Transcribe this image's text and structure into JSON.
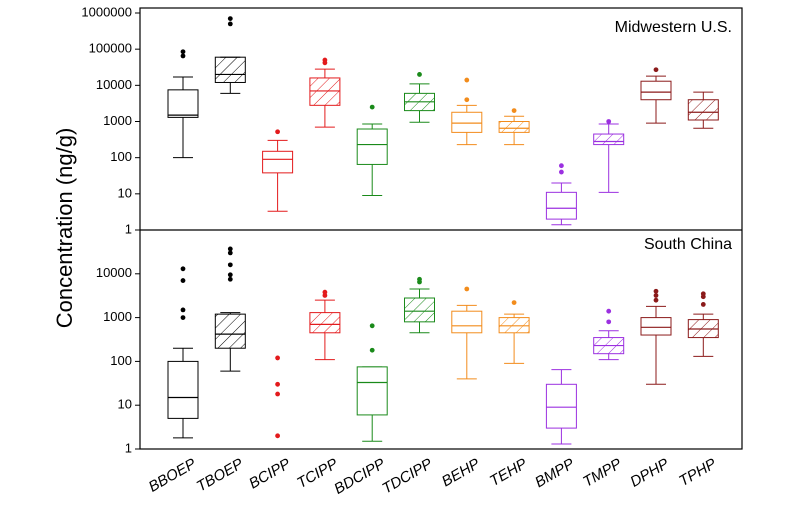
{
  "y_label": "Concentration (ng/g)",
  "chart_data": [
    {
      "type": "box",
      "label": "Midwestern U.S.",
      "log": true,
      "ylim": [
        1,
        1000000
      ],
      "yticks": [
        1,
        10,
        100,
        1000,
        10000,
        100000,
        1000000
      ],
      "colors": [
        "#000000",
        "#000000",
        "#e31a1c",
        "#e31a1c",
        "#1a8a1a",
        "#1a8a1a",
        "#f28c1c",
        "#f28c1c",
        "#9b30e0",
        "#9b30e0",
        "#8b1a1a",
        "#8b1a1a"
      ],
      "hatched": [
        false,
        true,
        false,
        true,
        false,
        true,
        false,
        true,
        false,
        true,
        false,
        true
      ],
      "boxes": [
        {
          "low": 100,
          "q1": 1300,
          "median": 1500,
          "q3": 7500,
          "high": 17000,
          "outliers": [
            65000,
            85000
          ]
        },
        {
          "low": 6000,
          "q1": 12000,
          "median": 20000,
          "q3": 60000,
          "high": 60000,
          "outliers": [
            500000,
            700000
          ]
        },
        {
          "low": 3.3,
          "q1": 38,
          "median": 90,
          "q3": 150,
          "high": 300,
          "outliers": [
            520
          ]
        },
        {
          "low": 700,
          "q1": 2800,
          "median": 7000,
          "q3": 16000,
          "high": 28000,
          "outliers": [
            42000,
            50000
          ]
        },
        {
          "low": 9,
          "q1": 65,
          "median": 230,
          "q3": 620,
          "high": 850,
          "outliers": [
            2500
          ]
        },
        {
          "low": 950,
          "q1": 2000,
          "median": 3500,
          "q3": 6000,
          "high": 11000,
          "outliers": [
            20000
          ]
        },
        {
          "low": 230,
          "q1": 500,
          "median": 900,
          "q3": 1800,
          "high": 2800,
          "outliers": [
            4000,
            14000
          ]
        },
        {
          "low": 230,
          "q1": 500,
          "median": 650,
          "q3": 1000,
          "high": 1400,
          "outliers": [
            2000
          ]
        },
        {
          "low": 1.4,
          "q1": 2,
          "median": 4,
          "q3": 11,
          "high": 20,
          "outliers": [
            40,
            60
          ]
        },
        {
          "low": 11,
          "q1": 230,
          "median": 280,
          "q3": 450,
          "high": 850,
          "outliers": [
            1000
          ]
        },
        {
          "low": 900,
          "q1": 4000,
          "median": 6500,
          "q3": 13000,
          "high": 18000,
          "outliers": [
            27000
          ]
        },
        {
          "low": 650,
          "q1": 1100,
          "median": 1800,
          "q3": 4000,
          "high": 6500,
          "outliers": []
        }
      ]
    },
    {
      "type": "box",
      "label": "South China",
      "log": true,
      "ylim": [
        1,
        100000
      ],
      "yticks": [
        1,
        10,
        100,
        1000,
        10000
      ],
      "categories": [
        "BBOEP",
        "TBOEP",
        "BCIPP",
        "TCIPP",
        "BDCIPP",
        "TDCIPP",
        "BEHP",
        "TEHP",
        "BMPP",
        "TMPP",
        "DPHP",
        "TPHP"
      ],
      "colors": [
        "#000000",
        "#000000",
        "#e31a1c",
        "#e31a1c",
        "#1a8a1a",
        "#1a8a1a",
        "#f28c1c",
        "#f28c1c",
        "#9b30e0",
        "#9b30e0",
        "#8b1a1a",
        "#8b1a1a"
      ],
      "hatched": [
        false,
        true,
        false,
        true,
        false,
        true,
        false,
        true,
        false,
        true,
        false,
        true
      ],
      "boxes": [
        {
          "low": 1.8,
          "q1": 5,
          "median": 15,
          "q3": 100,
          "high": 200,
          "outliers": [
            1000,
            1500,
            7000,
            13000
          ]
        },
        {
          "low": 60,
          "q1": 200,
          "median": 420,
          "q3": 1200,
          "high": 1300,
          "outliers": [
            7500,
            9500,
            16000,
            30000,
            37000
          ]
        },
        {
          "low": null,
          "q1": null,
          "median": null,
          "q3": null,
          "high": null,
          "outliers": [
            2,
            18,
            30,
            120
          ]
        },
        {
          "low": 110,
          "q1": 450,
          "median": 700,
          "q3": 1300,
          "high": 2500,
          "outliers": [
            3200,
            3800
          ]
        },
        {
          "low": 1.5,
          "q1": 6,
          "median": 33,
          "q3": 75,
          "high": 75,
          "outliers": [
            180,
            650
          ]
        },
        {
          "low": 450,
          "q1": 800,
          "median": 1400,
          "q3": 2800,
          "high": 4500,
          "outliers": [
            6500,
            7500
          ]
        },
        {
          "low": 40,
          "q1": 450,
          "median": 650,
          "q3": 1400,
          "high": 1900,
          "outliers": [
            4500
          ]
        },
        {
          "low": 90,
          "q1": 450,
          "median": 650,
          "q3": 1000,
          "high": 1200,
          "outliers": [
            2200
          ]
        },
        {
          "low": 1.3,
          "q1": 3,
          "median": 9,
          "q3": 30,
          "high": 65,
          "outliers": []
        },
        {
          "low": 110,
          "q1": 150,
          "median": 230,
          "q3": 350,
          "high": 500,
          "outliers": [
            800,
            1400
          ]
        },
        {
          "low": 30,
          "q1": 400,
          "median": 600,
          "q3": 1000,
          "high": 1800,
          "outliers": [
            2500,
            3200,
            4000
          ]
        },
        {
          "low": 130,
          "q1": 350,
          "median": 550,
          "q3": 900,
          "high": 1200,
          "outliers": [
            2000,
            3000,
            3500
          ]
        }
      ]
    }
  ]
}
